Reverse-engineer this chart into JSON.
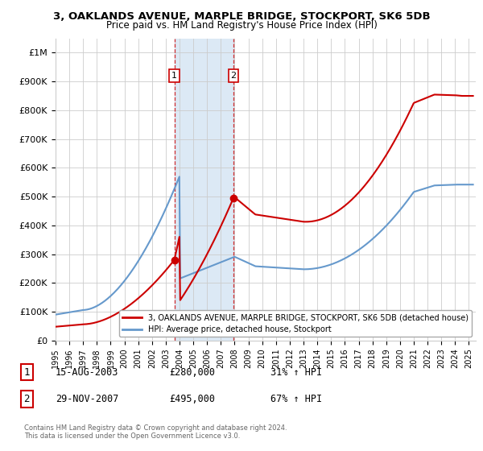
{
  "title": "3, OAKLANDS AVENUE, MARPLE BRIDGE, STOCKPORT, SK6 5DB",
  "subtitle": "Price paid vs. HM Land Registry's House Price Index (HPI)",
  "ylabel_ticks": [
    "£0",
    "£100K",
    "£200K",
    "£300K",
    "£400K",
    "£500K",
    "£600K",
    "£700K",
    "£800K",
    "£900K",
    "£1M"
  ],
  "ytick_vals": [
    0,
    100000,
    200000,
    300000,
    400000,
    500000,
    600000,
    700000,
    800000,
    900000,
    1000000
  ],
  "ylim": [
    0,
    1050000
  ],
  "xlim_start": 1995.0,
  "xlim_end": 2025.5,
  "sale1_x": 2003.62,
  "sale1_y": 280000,
  "sale1_label": "1",
  "sale2_x": 2007.91,
  "sale2_y": 495000,
  "sale2_label": "2",
  "sale1_date": "15-AUG-2003",
  "sale1_price": "£280,000",
  "sale1_hpi": "31% ↑ HPI",
  "sale2_date": "29-NOV-2007",
  "sale2_price": "£495,000",
  "sale2_hpi": "67% ↑ HPI",
  "legend_line1": "3, OAKLANDS AVENUE, MARPLE BRIDGE, STOCKPORT, SK6 5DB (detached house)",
  "legend_line2": "HPI: Average price, detached house, Stockport",
  "footer": "Contains HM Land Registry data © Crown copyright and database right 2024.\nThis data is licensed under the Open Government Licence v3.0.",
  "red_line_color": "#cc0000",
  "blue_line_color": "#6699cc",
  "shade_color": "#dce9f5",
  "grid_color": "#cccccc",
  "background_color": "#ffffff"
}
